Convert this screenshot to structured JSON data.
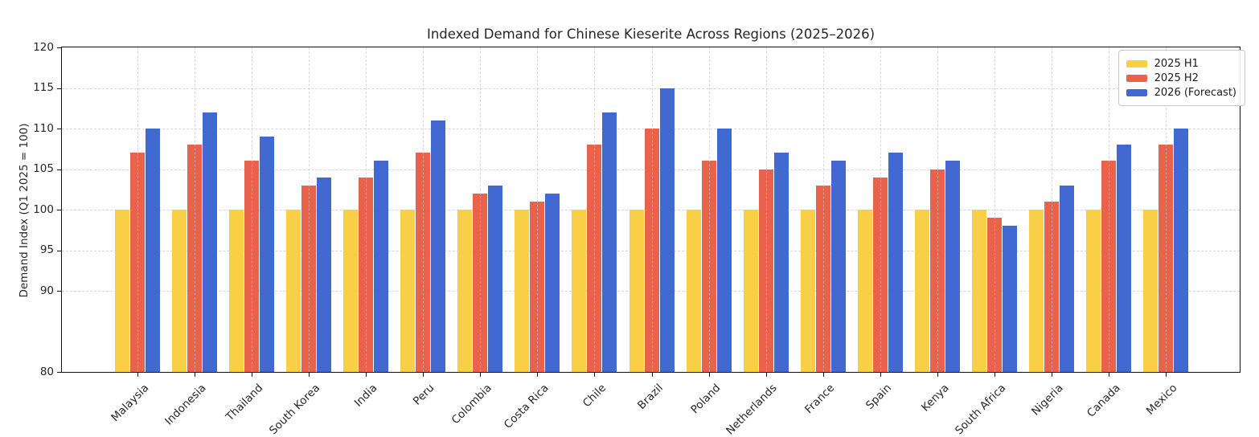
{
  "figure": {
    "background": "#ffffff",
    "title": "Indexed Demand for Chinese Kieserite Across Regions (2025–2026)",
    "ylabel": "Demand Index (Q1 2025 = 100)"
  },
  "chart_data": {
    "type": "bar",
    "title": "Indexed Demand for Chinese Kieserite Across Regions (2025–2026)",
    "xlabel": "",
    "ylabel": "Demand Index (Q1 2025 = 100)",
    "ylim": [
      80,
      120
    ],
    "yticks": [
      80,
      90,
      95,
      100,
      105,
      110,
      115,
      120
    ],
    "grid": true,
    "legend_position": "upper right",
    "categories": [
      "Malaysia",
      "Indonesia",
      "Thailand",
      "South Korea",
      "India",
      "Peru",
      "Colombia",
      "Costa Rica",
      "Chile",
      "Brazil",
      "Poland",
      "Netherlands",
      "France",
      "Spain",
      "Kenya",
      "South Africa",
      "Nigeria",
      "Canada",
      "Mexico"
    ],
    "series": [
      {
        "name": "2025 H1",
        "color": "#F8CF47",
        "values": [
          100,
          100,
          100,
          100,
          100,
          100,
          100,
          100,
          100,
          100,
          100,
          100,
          100,
          100,
          100,
          100,
          100,
          100,
          100
        ]
      },
      {
        "name": "2025 H2",
        "color": "#E9624C",
        "values": [
          107,
          108,
          106,
          103,
          104,
          107,
          102,
          101,
          108,
          110,
          106,
          105,
          103,
          104,
          105,
          99,
          101,
          106,
          108
        ]
      },
      {
        "name": "2026 (Forecast)",
        "color": "#4269D2",
        "values": [
          110,
          112,
          109,
          104,
          106,
          111,
          103,
          102,
          112,
          115,
          110,
          107,
          106,
          107,
          106,
          98,
          103,
          108,
          110
        ]
      }
    ]
  }
}
